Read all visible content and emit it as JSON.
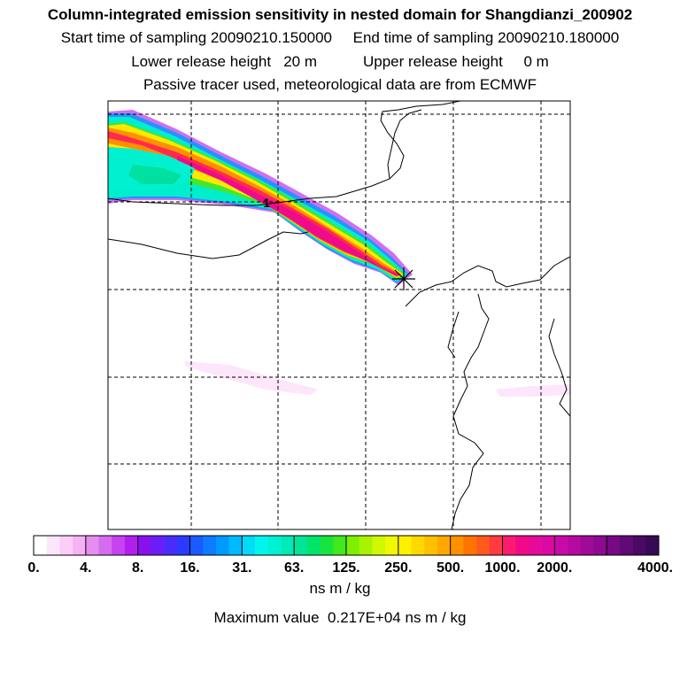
{
  "header": {
    "title": "Column-integrated emission sensitivity in nested domain for Shangdianzi_200902",
    "start_label": "Start time of sampling",
    "start_value": "20090210.150000",
    "end_label": "End time of sampling",
    "end_value": "20090210.180000",
    "lower_label": "Lower release height",
    "lower_value": "20 m",
    "upper_label": "Upper release height",
    "upper_value": "0 m",
    "tracer_line": "Passive tracer used, meteorological data are from ECMWF"
  },
  "chart_data": {
    "type": "heatmap",
    "title": "Column-integrated emission sensitivity in nested domain for Shangdianzi_200902",
    "colorbar": {
      "tick_labels": [
        "0.",
        "4.",
        "8.",
        "16.",
        "31.",
        "63.",
        "125.",
        "250.",
        "500.",
        "1000.",
        "2000.",
        "4000."
      ],
      "units": "ns m / kg",
      "scale": "log2",
      "colors": [
        "#ffffff",
        "#fde6fb",
        "#fbcdf7",
        "#f6b2f3",
        "#e58ef0",
        "#d66cf0",
        "#c543f0",
        "#b21ef0",
        "#8a10f0",
        "#6a1ef5",
        "#4a2cfa",
        "#2a3aff",
        "#1a5aff",
        "#0d7aff",
        "#009aff",
        "#00baff",
        "#00dcf8",
        "#00f6ec",
        "#00f0d4",
        "#00eab8",
        "#00e696",
        "#00e46a",
        "#18e440",
        "#40e81c",
        "#7cf000",
        "#a8f400",
        "#d0f800",
        "#f0f800",
        "#fff000",
        "#ffd800",
        "#ffc000",
        "#ffa800",
        "#ff9000",
        "#ff7400",
        "#ff5a1c",
        "#ff3a40",
        "#ff1a70",
        "#f00a8a",
        "#e60a98",
        "#dc0aa4",
        "#c80aa8",
        "#b40aa0",
        "#a00a98",
        "#8c0a90",
        "#760a84",
        "#600a74",
        "#4a0a64",
        "#360a54"
      ]
    },
    "max_value_label": "Maximum value",
    "max_value": "0.217E+04",
    "max_value_units": "ns m / kg",
    "max_value_num": 2170,
    "release_site": "Shangdianzi",
    "time_marker_label": "1",
    "plume": {
      "description": "emission sensitivity plume extending north-west from release site",
      "peak_value": 2170
    }
  }
}
